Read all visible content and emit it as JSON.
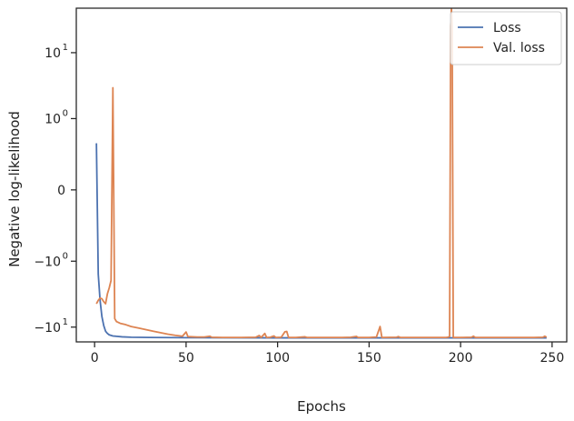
{
  "chart_data": {
    "type": "line",
    "xlabel": "Epochs",
    "ylabel": "Negative log-likelihood",
    "yscale": "symlog",
    "xlim": [
      -10,
      258
    ],
    "ylim": [
      -16.5,
      45
    ],
    "x_ticks": [
      0,
      50,
      100,
      150,
      200,
      250
    ],
    "y_ticks": [
      {
        "value": 10,
        "label": "10",
        "exp": "1"
      },
      {
        "value": 1,
        "label": "10",
        "exp": "0"
      },
      {
        "value": 0,
        "label": "0",
        "exp": ""
      },
      {
        "value": -1,
        "label": "−10",
        "exp": "0"
      },
      {
        "value": -10,
        "label": "−10",
        "exp": "1"
      }
    ],
    "grid": false,
    "legend_position": "top-right",
    "series": [
      {
        "name": "Loss",
        "color": "#4c72b0",
        "points": [
          [
            1,
            0.38
          ],
          [
            2,
            -1.6
          ],
          [
            3,
            -4.0
          ],
          [
            4,
            -7.0
          ],
          [
            5,
            -9.5
          ],
          [
            6,
            -11.5
          ],
          [
            7,
            -12.4
          ],
          [
            8,
            -13.0
          ],
          [
            10,
            -13.5
          ],
          [
            15,
            -13.9
          ],
          [
            20,
            -14.1
          ],
          [
            30,
            -14.2
          ],
          [
            50,
            -14.3
          ],
          [
            100,
            -14.4
          ],
          [
            150,
            -14.4
          ],
          [
            200,
            -14.4
          ],
          [
            247,
            -14.4
          ]
        ]
      },
      {
        "name": "Val. loss",
        "color": "#dd8452",
        "points": [
          [
            1,
            -4.5
          ],
          [
            2,
            -4.0
          ],
          [
            3,
            -3.7
          ],
          [
            4,
            -3.8
          ],
          [
            5,
            -4.2
          ],
          [
            6,
            -4.5
          ],
          [
            7,
            -3.2
          ],
          [
            8,
            -2.6
          ],
          [
            9,
            -2.0
          ],
          [
            10,
            3.0
          ],
          [
            11,
            -7.5
          ],
          [
            12,
            -8.3
          ],
          [
            14,
            -8.8
          ],
          [
            17,
            -9.2
          ],
          [
            20,
            -9.8
          ],
          [
            24,
            -10.3
          ],
          [
            28,
            -10.9
          ],
          [
            32,
            -11.5
          ],
          [
            36,
            -12.1
          ],
          [
            40,
            -12.7
          ],
          [
            44,
            -13.2
          ],
          [
            48,
            -13.6
          ],
          [
            50,
            -11.8
          ],
          [
            51,
            -13.8
          ],
          [
            56,
            -14.0
          ],
          [
            60,
            -14.0
          ],
          [
            63,
            -13.6
          ],
          [
            64,
            -14.1
          ],
          [
            70,
            -14.2
          ],
          [
            80,
            -14.2
          ],
          [
            88,
            -14.1
          ],
          [
            90,
            -13.3
          ],
          [
            91,
            -14.2
          ],
          [
            93,
            -12.4
          ],
          [
            94,
            -14.2
          ],
          [
            96,
            -14.1
          ],
          [
            98,
            -13.5
          ],
          [
            99,
            -14.2
          ],
          [
            102,
            -14.1
          ],
          [
            104,
            -11.7
          ],
          [
            105,
            -11.6
          ],
          [
            106,
            -14.2
          ],
          [
            110,
            -14.2
          ],
          [
            115,
            -13.9
          ],
          [
            116,
            -14.2
          ],
          [
            125,
            -14.2
          ],
          [
            135,
            -14.2
          ],
          [
            140,
            -14.1
          ],
          [
            143,
            -13.7
          ],
          [
            144,
            -14.2
          ],
          [
            150,
            -14.2
          ],
          [
            154,
            -14.0
          ],
          [
            156,
            -9.8
          ],
          [
            157,
            -14.2
          ],
          [
            165,
            -14.1
          ],
          [
            166,
            -13.8
          ],
          [
            167,
            -14.2
          ],
          [
            175,
            -14.2
          ],
          [
            185,
            -14.2
          ],
          [
            192,
            -14.2
          ],
          [
            193,
            -14.1
          ],
          [
            194,
            -13.8
          ],
          [
            194.6,
            25
          ],
          [
            195,
            45
          ],
          [
            195.4,
            25
          ],
          [
            196,
            -14.2
          ],
          [
            200,
            -14.2
          ],
          [
            206,
            -14.1
          ],
          [
            207,
            -13.6
          ],
          [
            208,
            -14.2
          ],
          [
            215,
            -14.2
          ],
          [
            225,
            -14.2
          ],
          [
            235,
            -14.2
          ],
          [
            240,
            -14.2
          ],
          [
            245,
            -14.1
          ],
          [
            246,
            -13.6
          ],
          [
            247,
            -14.1
          ]
        ]
      }
    ]
  }
}
